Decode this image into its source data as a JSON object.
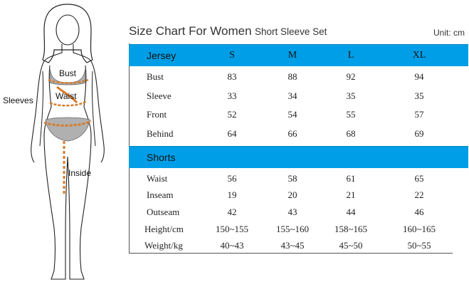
{
  "figure": {
    "labels": [
      "Bust",
      "Waist",
      "Sleeves",
      "Inside"
    ]
  },
  "title": {
    "main": "Size Chart For Women",
    "sub": "Short Sleeve Set",
    "unit": "Unit: cm"
  },
  "jersey": {
    "header": [
      "Jersey",
      "S",
      "M",
      "L",
      "XL"
    ],
    "rows": [
      [
        "Bust",
        "83",
        "88",
        "92",
        "94"
      ],
      [
        "Sleeve",
        "33",
        "34",
        "35",
        "35"
      ],
      [
        "Front",
        "52",
        "54",
        "55",
        "57"
      ],
      [
        "Behind",
        "64",
        "66",
        "68",
        "69"
      ]
    ]
  },
  "shorts": {
    "header": [
      "Shorts"
    ],
    "rows": [
      [
        "Waist",
        "56",
        "58",
        "61",
        "65"
      ],
      [
        "Inseam",
        "19",
        "20",
        "21",
        "22"
      ],
      [
        "Outseam",
        "42",
        "43",
        "44",
        "46"
      ],
      [
        "Height/cm",
        "150~155",
        "155~160",
        "158~165",
        "160~165"
      ],
      [
        "Weight/kg",
        "40~43",
        "43~45",
        "45~50",
        "50~55"
      ]
    ]
  },
  "colors": {
    "header_blue": "#009ee6",
    "measure_orange": "#d77a2a",
    "garment_gray": "#b0b0b0"
  }
}
